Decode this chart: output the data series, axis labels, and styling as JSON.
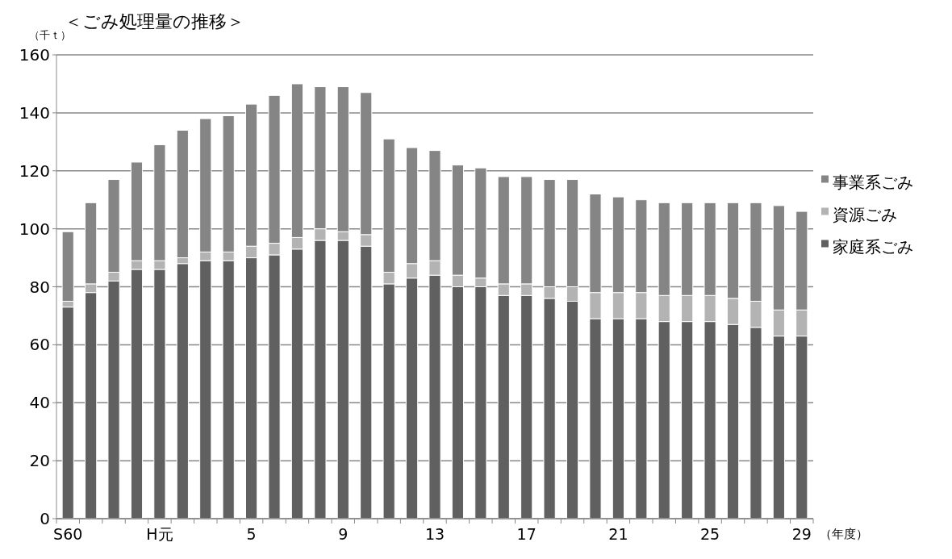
{
  "chart_data": {
    "type": "bar",
    "title": "＜ごみ処理量の推移＞",
    "ylabel": "（千ｔ）",
    "xlabel": "（年度）",
    "stacked": true,
    "grid": "y",
    "legend": "right",
    "categories": [
      "S60",
      null,
      null,
      null,
      "H元",
      null,
      null,
      null,
      "5",
      null,
      null,
      null,
      "9",
      null,
      null,
      null,
      "13",
      null,
      null,
      null,
      "17",
      null,
      null,
      null,
      "21",
      null,
      null,
      null,
      "25",
      null,
      null,
      null,
      "29"
    ],
    "ylim": [
      0,
      160
    ],
    "yticks": [
      0,
      20,
      40,
      60,
      80,
      100,
      120,
      140,
      160
    ],
    "series": [
      {
        "name": "家庭系ごみ",
        "color": "#606060",
        "values": [
          73,
          78,
          82,
          86,
          86,
          88,
          89,
          89,
          90,
          91,
          93,
          96,
          96,
          94,
          81,
          83,
          84,
          80,
          80,
          77,
          77,
          76,
          75,
          69,
          69,
          69,
          68,
          68,
          68,
          67,
          66,
          63,
          63
        ]
      },
      {
        "name": "資源ごみ",
        "color": "#b3b3b3",
        "values": [
          2,
          3,
          3,
          3,
          3,
          2,
          3,
          3,
          4,
          4,
          4,
          4,
          3,
          4,
          4,
          5,
          5,
          4,
          3,
          4,
          4,
          4,
          5,
          9,
          9,
          9,
          9,
          9,
          9,
          9,
          9,
          9,
          9
        ]
      },
      {
        "name": "事業系ごみ",
        "color": "#858585",
        "values": [
          24,
          28,
          32,
          34,
          40,
          44,
          46,
          47,
          49,
          51,
          53,
          49,
          50,
          49,
          46,
          40,
          38,
          38,
          38,
          37,
          37,
          37,
          37,
          34,
          33,
          32,
          32,
          32,
          32,
          33,
          34,
          36,
          34
        ]
      }
    ]
  }
}
